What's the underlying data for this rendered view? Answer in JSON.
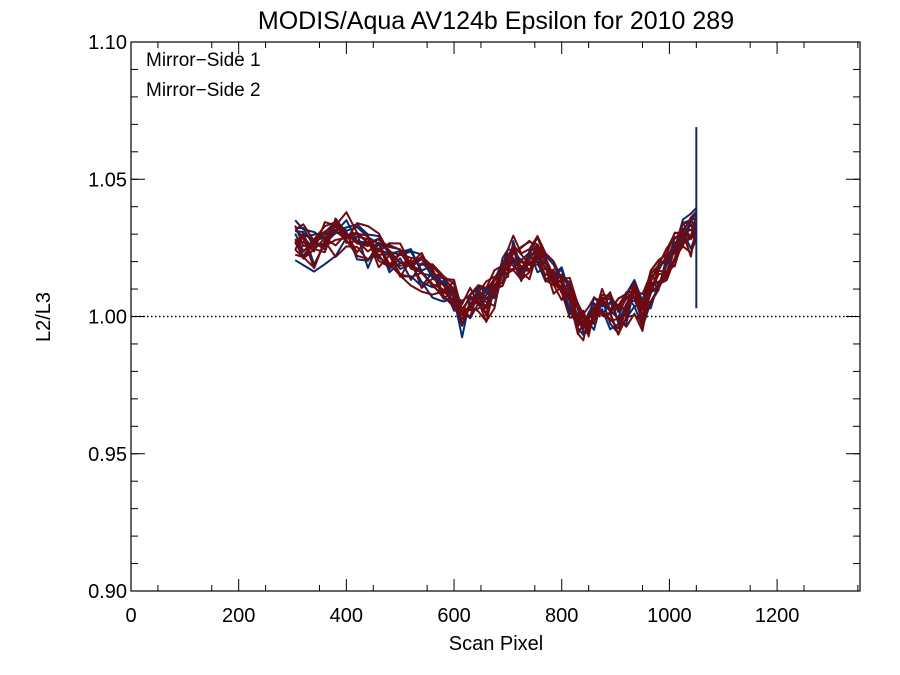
{
  "chart_data": {
    "type": "line",
    "title": "MODIS/Aqua AV124b Epsilon for 2010 289",
    "xlabel": "Scan Pixel",
    "ylabel": "L2/L3",
    "xlim": [
      0,
      1354
    ],
    "ylim": [
      0.9,
      1.1
    ],
    "x_ticks": [
      0,
      200,
      400,
      600,
      800,
      1000,
      1200
    ],
    "x_tick_labels": [
      "0",
      "200",
      "400",
      "600",
      "800",
      "1000",
      "1200"
    ],
    "y_ticks": [
      0.9,
      0.95,
      1.0,
      1.05,
      1.1
    ],
    "y_tick_labels": [
      "0.90",
      "0.95",
      "1.00",
      "1.05",
      "1.10"
    ],
    "reference_line": {
      "y": 1.0,
      "style": "dotted"
    },
    "legend": {
      "placement": "top-left",
      "entries": [
        {
          "label": "Mirror−Side 1",
          "color": "#0a2a6e"
        },
        {
          "label": "Mirror−Side 2",
          "color": "#6e0a10"
        }
      ]
    },
    "base_profile": {
      "x": [
        305,
        320,
        340,
        360,
        380,
        400,
        420,
        440,
        460,
        480,
        500,
        520,
        540,
        560,
        580,
        600,
        615,
        630,
        645,
        660,
        675,
        690,
        700,
        710,
        725,
        740,
        755,
        770,
        785,
        800,
        815,
        830,
        840,
        850,
        860,
        875,
        890,
        905,
        920,
        935,
        950,
        965,
        980,
        995,
        1010,
        1025,
        1040,
        1050
      ],
      "y": [
        1.029,
        1.027,
        1.025,
        1.028,
        1.031,
        1.031,
        1.028,
        1.026,
        1.024,
        1.022,
        1.021,
        1.019,
        1.017,
        1.014,
        1.011,
        1.007,
        1.001,
        1.004,
        1.007,
        1.006,
        1.01,
        1.016,
        1.02,
        1.023,
        1.019,
        1.021,
        1.023,
        1.019,
        1.015,
        1.012,
        1.008,
        1.0,
        0.997,
        0.998,
        1.002,
        1.005,
        1.003,
        1.0,
        1.004,
        1.008,
        1.002,
        1.01,
        1.014,
        1.019,
        1.024,
        1.029,
        1.031,
        1.033
      ]
    },
    "series": [
      {
        "group": "Mirror-Side 1",
        "color": "#0a2a6e",
        "offset": 0.002,
        "noise": 0.004,
        "seed": 11
      },
      {
        "group": "Mirror-Side 1",
        "color": "#0a2a6e",
        "offset": -0.001,
        "noise": 0.005,
        "seed": 23
      },
      {
        "group": "Mirror-Side 1",
        "color": "#0a2a6e",
        "offset": 0.001,
        "noise": 0.004,
        "seed": 37
      },
      {
        "group": "Mirror-Side 1",
        "color": "#0a2a6e",
        "offset": -0.002,
        "noise": 0.006,
        "seed": 41
      },
      {
        "group": "Mirror-Side 1",
        "color": "#0a2a6e",
        "offset": 0.0,
        "noise": 0.005,
        "seed": 53
      },
      {
        "group": "Mirror-Side 1",
        "color": "#0a2a6e",
        "offset": 0.003,
        "noise": 0.004,
        "seed": 67
      },
      {
        "group": "Mirror-Side 1",
        "color": "#0a2a6e",
        "offset": -0.003,
        "noise": 0.006,
        "seed": 71
      },
      {
        "group": "Mirror-Side 1",
        "color": "#0a2a6e",
        "offset": 0.001,
        "noise": 0.005,
        "seed": 83
      },
      {
        "group": "Mirror-Side 2",
        "color": "#6e0a10",
        "offset": 0.001,
        "noise": 0.004,
        "seed": 97
      },
      {
        "group": "Mirror-Side 2",
        "color": "#6e0a10",
        "offset": -0.002,
        "noise": 0.005,
        "seed": 101
      },
      {
        "group": "Mirror-Side 2",
        "color": "#6e0a10",
        "offset": 0.002,
        "noise": 0.005,
        "seed": 113
      },
      {
        "group": "Mirror-Side 2",
        "color": "#6e0a10",
        "offset": -0.001,
        "noise": 0.004,
        "seed": 127
      },
      {
        "group": "Mirror-Side 2",
        "color": "#6e0a10",
        "offset": 0.0,
        "noise": 0.006,
        "seed": 131
      },
      {
        "group": "Mirror-Side 2",
        "color": "#6e0a10",
        "offset": -0.003,
        "noise": 0.005,
        "seed": 149
      },
      {
        "group": "Mirror-Side 2",
        "color": "#6e0a10",
        "offset": 0.003,
        "noise": 0.004,
        "seed": 157
      },
      {
        "group": "Mirror-Side 2",
        "color": "#6e0a10",
        "offset": -0.004,
        "noise": 0.006,
        "seed": 163
      },
      {
        "group": "Mirror-Side 2",
        "color": "#6e0a10",
        "offset": 0.002,
        "noise": 0.005,
        "seed": 173
      },
      {
        "group": "Mirror-Side 2",
        "color": "#6e0a10",
        "offset": -0.001,
        "noise": 0.005,
        "seed": 181
      }
    ],
    "spike": {
      "x": 1050,
      "y_range": [
        1.003,
        1.069
      ],
      "color": "#0a2a6e"
    }
  }
}
